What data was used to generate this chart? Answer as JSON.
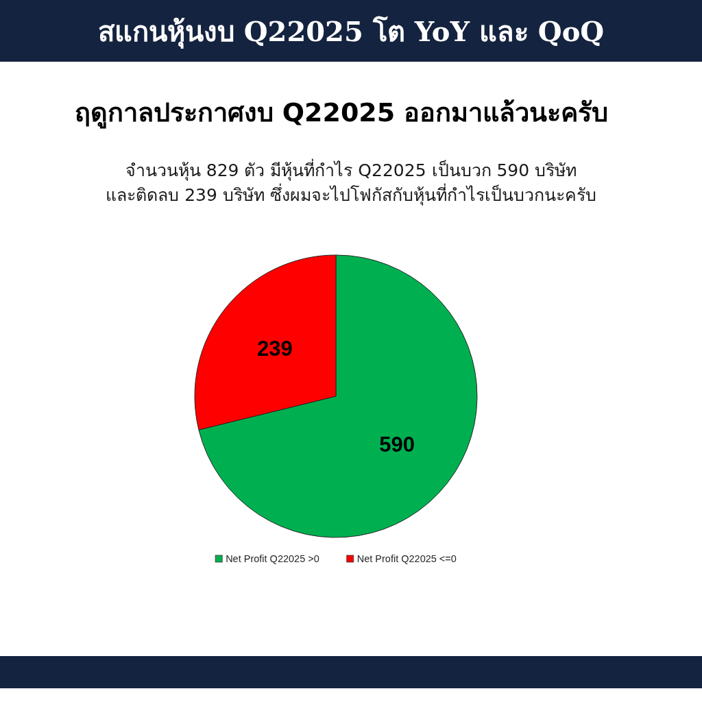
{
  "chart_data": {
    "type": "pie",
    "title": "สแกนหุ้นงบ Q22025 โต YoY และ QoQ",
    "subtitle": "ฤดูกาลประกาศงบ Q22025 ออกมาแล้วนะครับ",
    "annotations": [
      "จำนวนหุ้น 829 ตัว มีหุ้นที่กำไร Q22025 เป็นบวก 590 บริษัท",
      "และติดลบ 239 บริษัท ซึ่งผมจะไปโฟกัสกับหุ้นที่กำไรเป็นบวกนะครับ"
    ],
    "categories": [
      "Net Profit Q22025 >0",
      "Net Profit Q22025 <=0"
    ],
    "values": [
      590,
      239
    ],
    "colors": [
      "#00b050",
      "#ff0000"
    ],
    "data_labels": true,
    "legend": "bottom"
  }
}
